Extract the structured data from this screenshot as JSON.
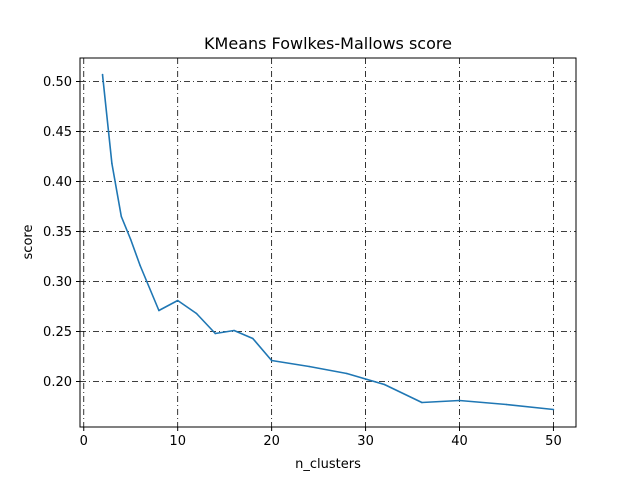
{
  "chart_data": {
    "type": "line",
    "title": "KMeans Fowlkes-Mallows score",
    "xlabel": "n_clusters",
    "ylabel": "score",
    "xlim": [
      -0.4,
      52.4
    ],
    "ylim": [
      0.1545,
      0.5235
    ],
    "x_ticks": [
      0,
      10,
      20,
      30,
      40,
      50
    ],
    "y_ticks": [
      0.2,
      0.25,
      0.3,
      0.35,
      0.4,
      0.45,
      0.5
    ],
    "x_tick_labels": [
      "0",
      "10",
      "20",
      "30",
      "40",
      "50"
    ],
    "y_tick_labels": [
      "0.20",
      "0.25",
      "0.30",
      "0.35",
      "0.40",
      "0.45",
      "0.50"
    ],
    "grid": true,
    "grid_style": "dashdot",
    "series": [
      {
        "color": "#1f77b4",
        "x": [
          2,
          3,
          4,
          5,
          6,
          8,
          10,
          12,
          14,
          16,
          18,
          20,
          24,
          28,
          32,
          36,
          40,
          45,
          50
        ],
        "y": [
          0.507,
          0.418,
          0.365,
          0.342,
          0.316,
          0.271,
          0.281,
          0.268,
          0.248,
          0.251,
          0.243,
          0.221,
          0.215,
          0.208,
          0.197,
          0.179,
          0.181,
          0.177,
          0.172
        ]
      }
    ]
  }
}
